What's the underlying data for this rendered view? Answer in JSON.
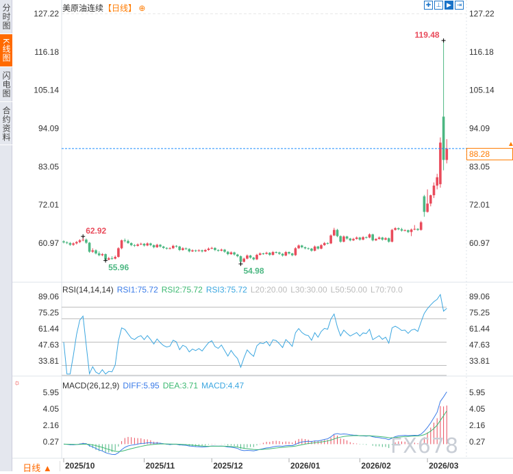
{
  "sidebar": {
    "tabs": [
      {
        "label": "分时图",
        "active": false
      },
      {
        "label": "K线图",
        "active": true
      },
      {
        "label": "闪电图",
        "active": false
      },
      {
        "label": "合约资料",
        "active": false
      }
    ]
  },
  "header": {
    "name": "美原油连续",
    "period": "【日线】",
    "add_icon": "circle-plus-icon"
  },
  "toolbar": [
    {
      "icon": "crosshair-icon",
      "active": false
    },
    {
      "icon": "range-icon",
      "active": false
    },
    {
      "icon": "play-axis-icon",
      "active": true
    },
    {
      "icon": "exit-right-icon",
      "active": false
    }
  ],
  "bottom_tab": {
    "label": "日线 ▲"
  },
  "watermark": "FX678",
  "colors": {
    "up": "#e94b5b",
    "down": "#4cb782",
    "last_price": "#ff7b00",
    "price_line": "#1a8cff",
    "rsi": "#3aa6e0",
    "diff": "#3a7be8",
    "dea": "#3bb871"
  },
  "chart_data": {
    "type": "candlestick",
    "price_axis_ticks": [
      "127.22",
      "116.18",
      "105.14",
      "94.09",
      "83.05",
      "72.01",
      "60.97"
    ],
    "last_price": "88.28",
    "annotations": [
      {
        "label": "62.92",
        "kind": "high",
        "index": 6
      },
      {
        "label": "55.96",
        "kind": "low",
        "index": 13
      },
      {
        "label": "54.98",
        "kind": "low",
        "index": 55
      },
      {
        "label": "119.48",
        "kind": "high",
        "index": 118
      }
    ],
    "date_labels": [
      {
        "label": "2025/10",
        "index": 0
      },
      {
        "label": "2025/11",
        "index": 25
      },
      {
        "label": "2025/12",
        "index": 46
      },
      {
        "label": "2026/01",
        "index": 70
      },
      {
        "label": "2026/02",
        "index": 92
      },
      {
        "label": "2026/03",
        "index": 113
      }
    ],
    "ohlc": [
      [
        61.5,
        61.8,
        60.9,
        61.2
      ],
      [
        61.2,
        61.5,
        60.7,
        61.0
      ],
      [
        61.0,
        61.3,
        60.2,
        60.5
      ],
      [
        60.5,
        61.2,
        60.2,
        60.9
      ],
      [
        60.9,
        61.6,
        60.6,
        61.3
      ],
      [
        61.3,
        62.1,
        61.0,
        61.8
      ],
      [
        61.8,
        62.92,
        61.5,
        62.0
      ],
      [
        62.0,
        62.3,
        60.8,
        61.1
      ],
      [
        61.1,
        61.3,
        58.2,
        58.5
      ],
      [
        58.5,
        59.5,
        58.2,
        58.9
      ],
      [
        58.9,
        59.2,
        57.7,
        58.0
      ],
      [
        58.0,
        58.6,
        57.2,
        57.5
      ],
      [
        57.5,
        58.1,
        57.2,
        57.8
      ],
      [
        57.8,
        58.0,
        55.96,
        56.2
      ],
      [
        56.2,
        57.0,
        56.0,
        56.6
      ],
      [
        56.6,
        57.2,
        56.2,
        56.5
      ],
      [
        56.5,
        57.4,
        56.3,
        57.0
      ],
      [
        57.0,
        59.8,
        56.8,
        59.5
      ],
      [
        59.5,
        62.0,
        59.2,
        61.8
      ],
      [
        61.8,
        62.3,
        61.2,
        61.6
      ],
      [
        61.6,
        62.0,
        60.8,
        61.0
      ],
      [
        61.0,
        61.2,
        60.1,
        60.4
      ],
      [
        60.4,
        60.7,
        59.9,
        60.2
      ],
      [
        60.2,
        60.9,
        60.0,
        60.6
      ],
      [
        60.6,
        61.1,
        60.4,
        60.8
      ],
      [
        60.8,
        61.0,
        60.0,
        60.3
      ],
      [
        60.3,
        61.2,
        60.1,
        60.9
      ],
      [
        60.9,
        61.1,
        60.1,
        60.4
      ],
      [
        60.4,
        60.6,
        59.5,
        59.8
      ],
      [
        59.8,
        60.8,
        59.6,
        60.5
      ],
      [
        60.5,
        60.7,
        59.7,
        60.0
      ],
      [
        60.0,
        60.2,
        59.3,
        59.6
      ],
      [
        59.6,
        59.8,
        59.1,
        59.4
      ],
      [
        59.4,
        59.8,
        59.2,
        59.5
      ],
      [
        59.5,
        60.5,
        59.3,
        60.2
      ],
      [
        60.2,
        60.4,
        59.7,
        60.0
      ],
      [
        60.0,
        60.2,
        58.7,
        59.0
      ],
      [
        59.0,
        59.8,
        58.8,
        59.5
      ],
      [
        59.5,
        59.7,
        59.0,
        59.3
      ],
      [
        59.3,
        59.5,
        58.3,
        58.6
      ],
      [
        58.6,
        59.2,
        58.4,
        58.9
      ],
      [
        58.9,
        59.1,
        58.4,
        58.7
      ],
      [
        58.7,
        59.2,
        58.5,
        58.9
      ],
      [
        58.9,
        59.1,
        58.3,
        58.6
      ],
      [
        58.6,
        59.3,
        58.4,
        59.0
      ],
      [
        59.0,
        59.7,
        58.8,
        59.4
      ],
      [
        59.4,
        59.9,
        59.2,
        59.6
      ],
      [
        59.6,
        59.8,
        58.7,
        59.0
      ],
      [
        59.0,
        59.2,
        58.5,
        58.8
      ],
      [
        58.8,
        59.4,
        58.6,
        59.1
      ],
      [
        59.1,
        59.3,
        58.2,
        58.5
      ],
      [
        58.5,
        58.7,
        57.5,
        57.8
      ],
      [
        57.8,
        58.6,
        57.6,
        58.3
      ],
      [
        58.3,
        58.5,
        57.4,
        57.7
      ],
      [
        57.7,
        57.9,
        56.9,
        57.2
      ],
      [
        57.2,
        57.4,
        54.98,
        55.6
      ],
      [
        55.6,
        56.8,
        55.4,
        56.5
      ],
      [
        56.5,
        57.7,
        56.3,
        57.4
      ],
      [
        57.4,
        57.6,
        56.5,
        56.8
      ],
      [
        56.8,
        57.0,
        56.0,
        56.3
      ],
      [
        56.3,
        57.9,
        56.1,
        57.6
      ],
      [
        57.6,
        58.3,
        57.4,
        58.0
      ],
      [
        58.0,
        58.2,
        57.6,
        57.9
      ],
      [
        57.9,
        58.5,
        57.7,
        58.2
      ],
      [
        58.2,
        58.4,
        57.3,
        57.6
      ],
      [
        57.6,
        58.7,
        57.4,
        58.4
      ],
      [
        58.4,
        58.6,
        58.0,
        58.3
      ],
      [
        58.3,
        58.5,
        57.6,
        57.9
      ],
      [
        57.9,
        58.1,
        57.1,
        57.4
      ],
      [
        57.4,
        58.7,
        57.2,
        58.4
      ],
      [
        58.4,
        58.6,
        57.7,
        58.0
      ],
      [
        58.0,
        58.2,
        57.2,
        57.5
      ],
      [
        57.5,
        59.8,
        57.3,
        59.5
      ],
      [
        59.5,
        60.6,
        59.3,
        60.3
      ],
      [
        60.3,
        60.5,
        59.5,
        59.8
      ],
      [
        59.8,
        60.0,
        59.2,
        59.5
      ],
      [
        59.5,
        59.7,
        59.1,
        59.4
      ],
      [
        59.4,
        59.6,
        58.5,
        58.8
      ],
      [
        58.8,
        60.3,
        58.6,
        60.0
      ],
      [
        60.0,
        60.2,
        59.1,
        59.4
      ],
      [
        59.4,
        60.7,
        59.2,
        60.4
      ],
      [
        60.4,
        61.3,
        60.2,
        61.0
      ],
      [
        61.0,
        61.2,
        60.6,
        60.9
      ],
      [
        60.9,
        63.5,
        60.7,
        63.2
      ],
      [
        63.2,
        65.4,
        63.0,
        64.8
      ],
      [
        64.8,
        65.1,
        62.7,
        63.0
      ],
      [
        63.0,
        63.2,
        61.1,
        61.4
      ],
      [
        61.4,
        63.2,
        61.2,
        62.9
      ],
      [
        62.9,
        63.1,
        62.0,
        62.3
      ],
      [
        62.3,
        62.5,
        61.5,
        61.8
      ],
      [
        61.8,
        62.5,
        61.6,
        62.2
      ],
      [
        62.2,
        62.9,
        62.0,
        62.6
      ],
      [
        62.6,
        62.8,
        61.7,
        62.0
      ],
      [
        62.0,
        63.0,
        61.8,
        62.7
      ],
      [
        62.7,
        62.9,
        62.3,
        62.6
      ],
      [
        62.6,
        63.8,
        62.4,
        63.5
      ],
      [
        63.5,
        63.7,
        61.5,
        61.8
      ],
      [
        61.8,
        62.4,
        61.6,
        62.2
      ],
      [
        62.2,
        62.9,
        62.0,
        62.6
      ],
      [
        62.6,
        62.8,
        61.7,
        62.0
      ],
      [
        62.0,
        62.7,
        61.8,
        62.4
      ],
      [
        62.4,
        62.6,
        61.1,
        61.4
      ],
      [
        61.4,
        65.1,
        61.2,
        64.8
      ],
      [
        64.8,
        65.6,
        64.6,
        65.3
      ],
      [
        65.3,
        65.5,
        64.7,
        65.0
      ],
      [
        65.0,
        65.4,
        64.3,
        64.6
      ],
      [
        64.6,
        65.0,
        64.4,
        64.7
      ],
      [
        64.7,
        64.9,
        63.9,
        64.2
      ],
      [
        64.2,
        65.2,
        63.0,
        64.9
      ],
      [
        64.9,
        66.2,
        64.7,
        65.1
      ],
      [
        65.1,
        65.3,
        64.5,
        64.8
      ],
      [
        64.8,
        67.4,
        64.6,
        67.0
      ],
      [
        74.5,
        74.9,
        68.6,
        70.0
      ],
      [
        70.0,
        76.5,
        69.8,
        72.4
      ],
      [
        72.4,
        75.0,
        71.6,
        74.8
      ],
      [
        74.8,
        78.5,
        74.0,
        77.6
      ],
      [
        77.6,
        81.0,
        76.5,
        80.0
      ],
      [
        78.0,
        91.5,
        77.0,
        90.0
      ],
      [
        97.5,
        119.48,
        82.0,
        85.0
      ],
      [
        85.0,
        91.0,
        84.0,
        88.28
      ]
    ],
    "rsi": {
      "title": "RSI(14,14,14)",
      "rsi1": "RSI1:75.72",
      "rsi2": "RSI2:75.72",
      "rsi3": "RSI3:75.72",
      "l20": "L20:20.00",
      "l30": "L30:30.00",
      "l50": "L50:50.00",
      "l70": "L70:70.0",
      "ticks": [
        "89.06",
        "75.25",
        "61.44",
        "47.63",
        "33.81"
      ],
      "levels": [
        20,
        30,
        50,
        70,
        80
      ]
    },
    "macd": {
      "title": "MACD(26,12,9)",
      "diff": "DIFF:5.95",
      "dea": "DEA:3.71",
      "macd": "MACD:4.47",
      "ticks": [
        "5.95",
        "4.05",
        "2.16",
        "0.27"
      ]
    }
  }
}
